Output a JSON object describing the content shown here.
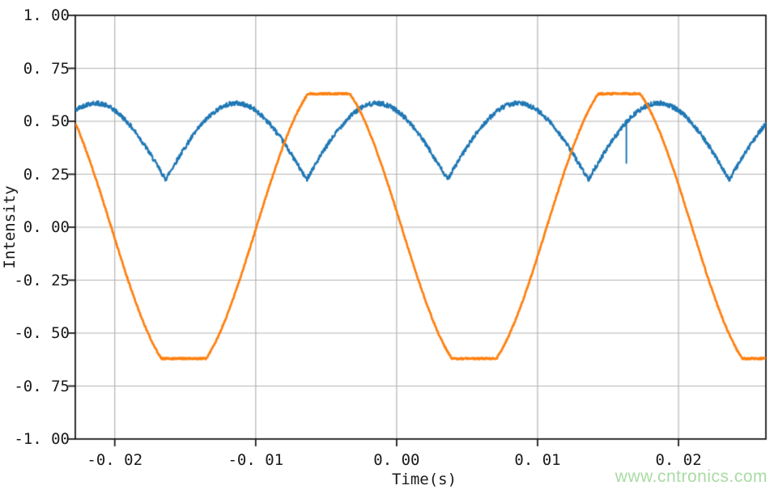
{
  "chart_data": {
    "type": "line",
    "title": "",
    "xlabel": "Time(s)",
    "ylabel": "Intensity",
    "xlim": [
      -0.0228,
      0.0262
    ],
    "ylim": [
      -1.0,
      1.0
    ],
    "grid": true,
    "grid_color": "#b3b3b3",
    "spine_color": "#1a1a1a",
    "tick_length": 9,
    "xticks": [
      -0.02,
      -0.01,
      0.0,
      0.01,
      0.02
    ],
    "xtick_labels": [
      "-0. 02",
      "-0. 01",
      "0. 00",
      "0. 01",
      "0. 02"
    ],
    "yticks": [
      1.0,
      0.75,
      0.5,
      0.25,
      0.0,
      -0.25,
      -0.5,
      -0.75,
      -1.0
    ],
    "ytick_labels": [
      "1. 00",
      "0. 75",
      "0. 50",
      "0. 25",
      "0. 00",
      "-0. 25",
      "-0. 50",
      "-0. 75",
      "-1. 00"
    ],
    "legend": "none",
    "noise_seed": 42,
    "samples": 1720,
    "series": [
      {
        "name": "rectified-sine-noisy-blue",
        "color": "#1f77b4",
        "line_width": 2.2,
        "model": {
          "kind": "abs_sine",
          "min": 0.225,
          "max": 0.585,
          "period": 0.01,
          "cusp_t": 0.0036,
          "noise": 0.011
        },
        "keypoints": [
          [
            -0.0228,
            0.55
          ],
          [
            -0.0214,
            0.59
          ],
          [
            -0.0164,
            0.225
          ],
          [
            -0.0114,
            0.585
          ],
          [
            -0.0064,
            0.225
          ],
          [
            -0.0014,
            0.585
          ],
          [
            0.0036,
            0.225
          ],
          [
            0.0086,
            0.585
          ],
          [
            0.0136,
            0.225
          ],
          [
            0.0186,
            0.585
          ],
          [
            0.0236,
            0.225
          ],
          [
            0.0262,
            0.47
          ]
        ],
        "glitch": {
          "t": 0.0163,
          "from": 0.5,
          "to": 0.3
        }
      },
      {
        "name": "clipped-sine-orange",
        "color": "#ff7f0e",
        "line_width": 2.7,
        "model": {
          "kind": "clipped_cosine",
          "amplitude": 0.7,
          "period": 0.0206,
          "peak_t": -0.0048,
          "clip_high": 0.63,
          "clip_low": -0.62,
          "noise": 0.004
        },
        "keypoints": [
          [
            -0.0228,
            0.49
          ],
          [
            -0.0207,
            0.0
          ],
          [
            -0.0151,
            -0.62
          ],
          [
            -0.00995,
            0.0
          ],
          [
            -0.0048,
            0.63
          ],
          [
            0.0004,
            0.0
          ],
          [
            0.0055,
            -0.62
          ],
          [
            0.0107,
            0.0
          ],
          [
            0.0158,
            0.63
          ],
          [
            0.0209,
            0.0
          ],
          [
            0.0262,
            -0.62
          ]
        ]
      }
    ]
  },
  "watermark": {
    "text": "www.cntronics.com",
    "color": "#a9dba4"
  }
}
